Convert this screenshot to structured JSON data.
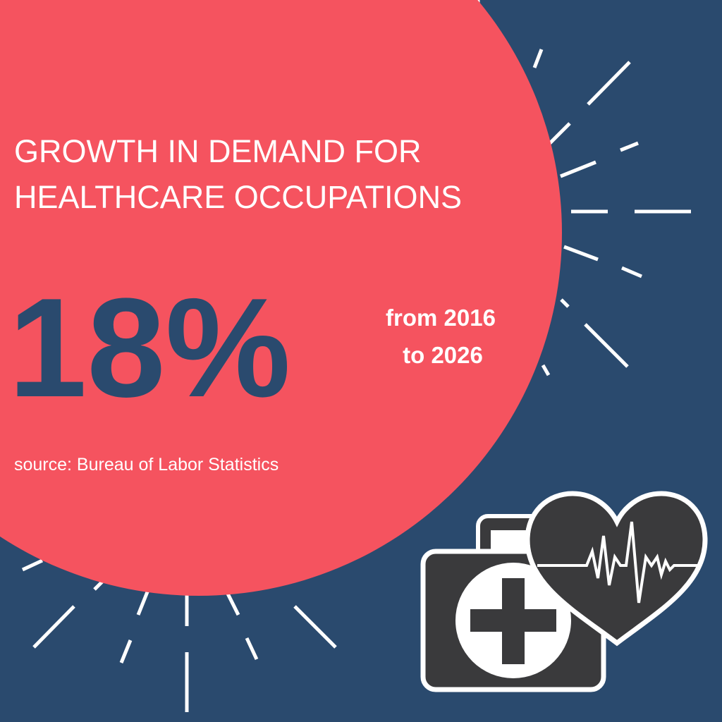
{
  "header": {
    "title_lines": [
      "GROWTH IN DEMAND FOR",
      "HEALTHCARE OCCUPATIONS"
    ]
  },
  "stat": {
    "value": "18%",
    "period_lines": [
      "from 2016",
      "to 2026"
    ]
  },
  "source": "source: Bureau of Labor Statistics"
}
